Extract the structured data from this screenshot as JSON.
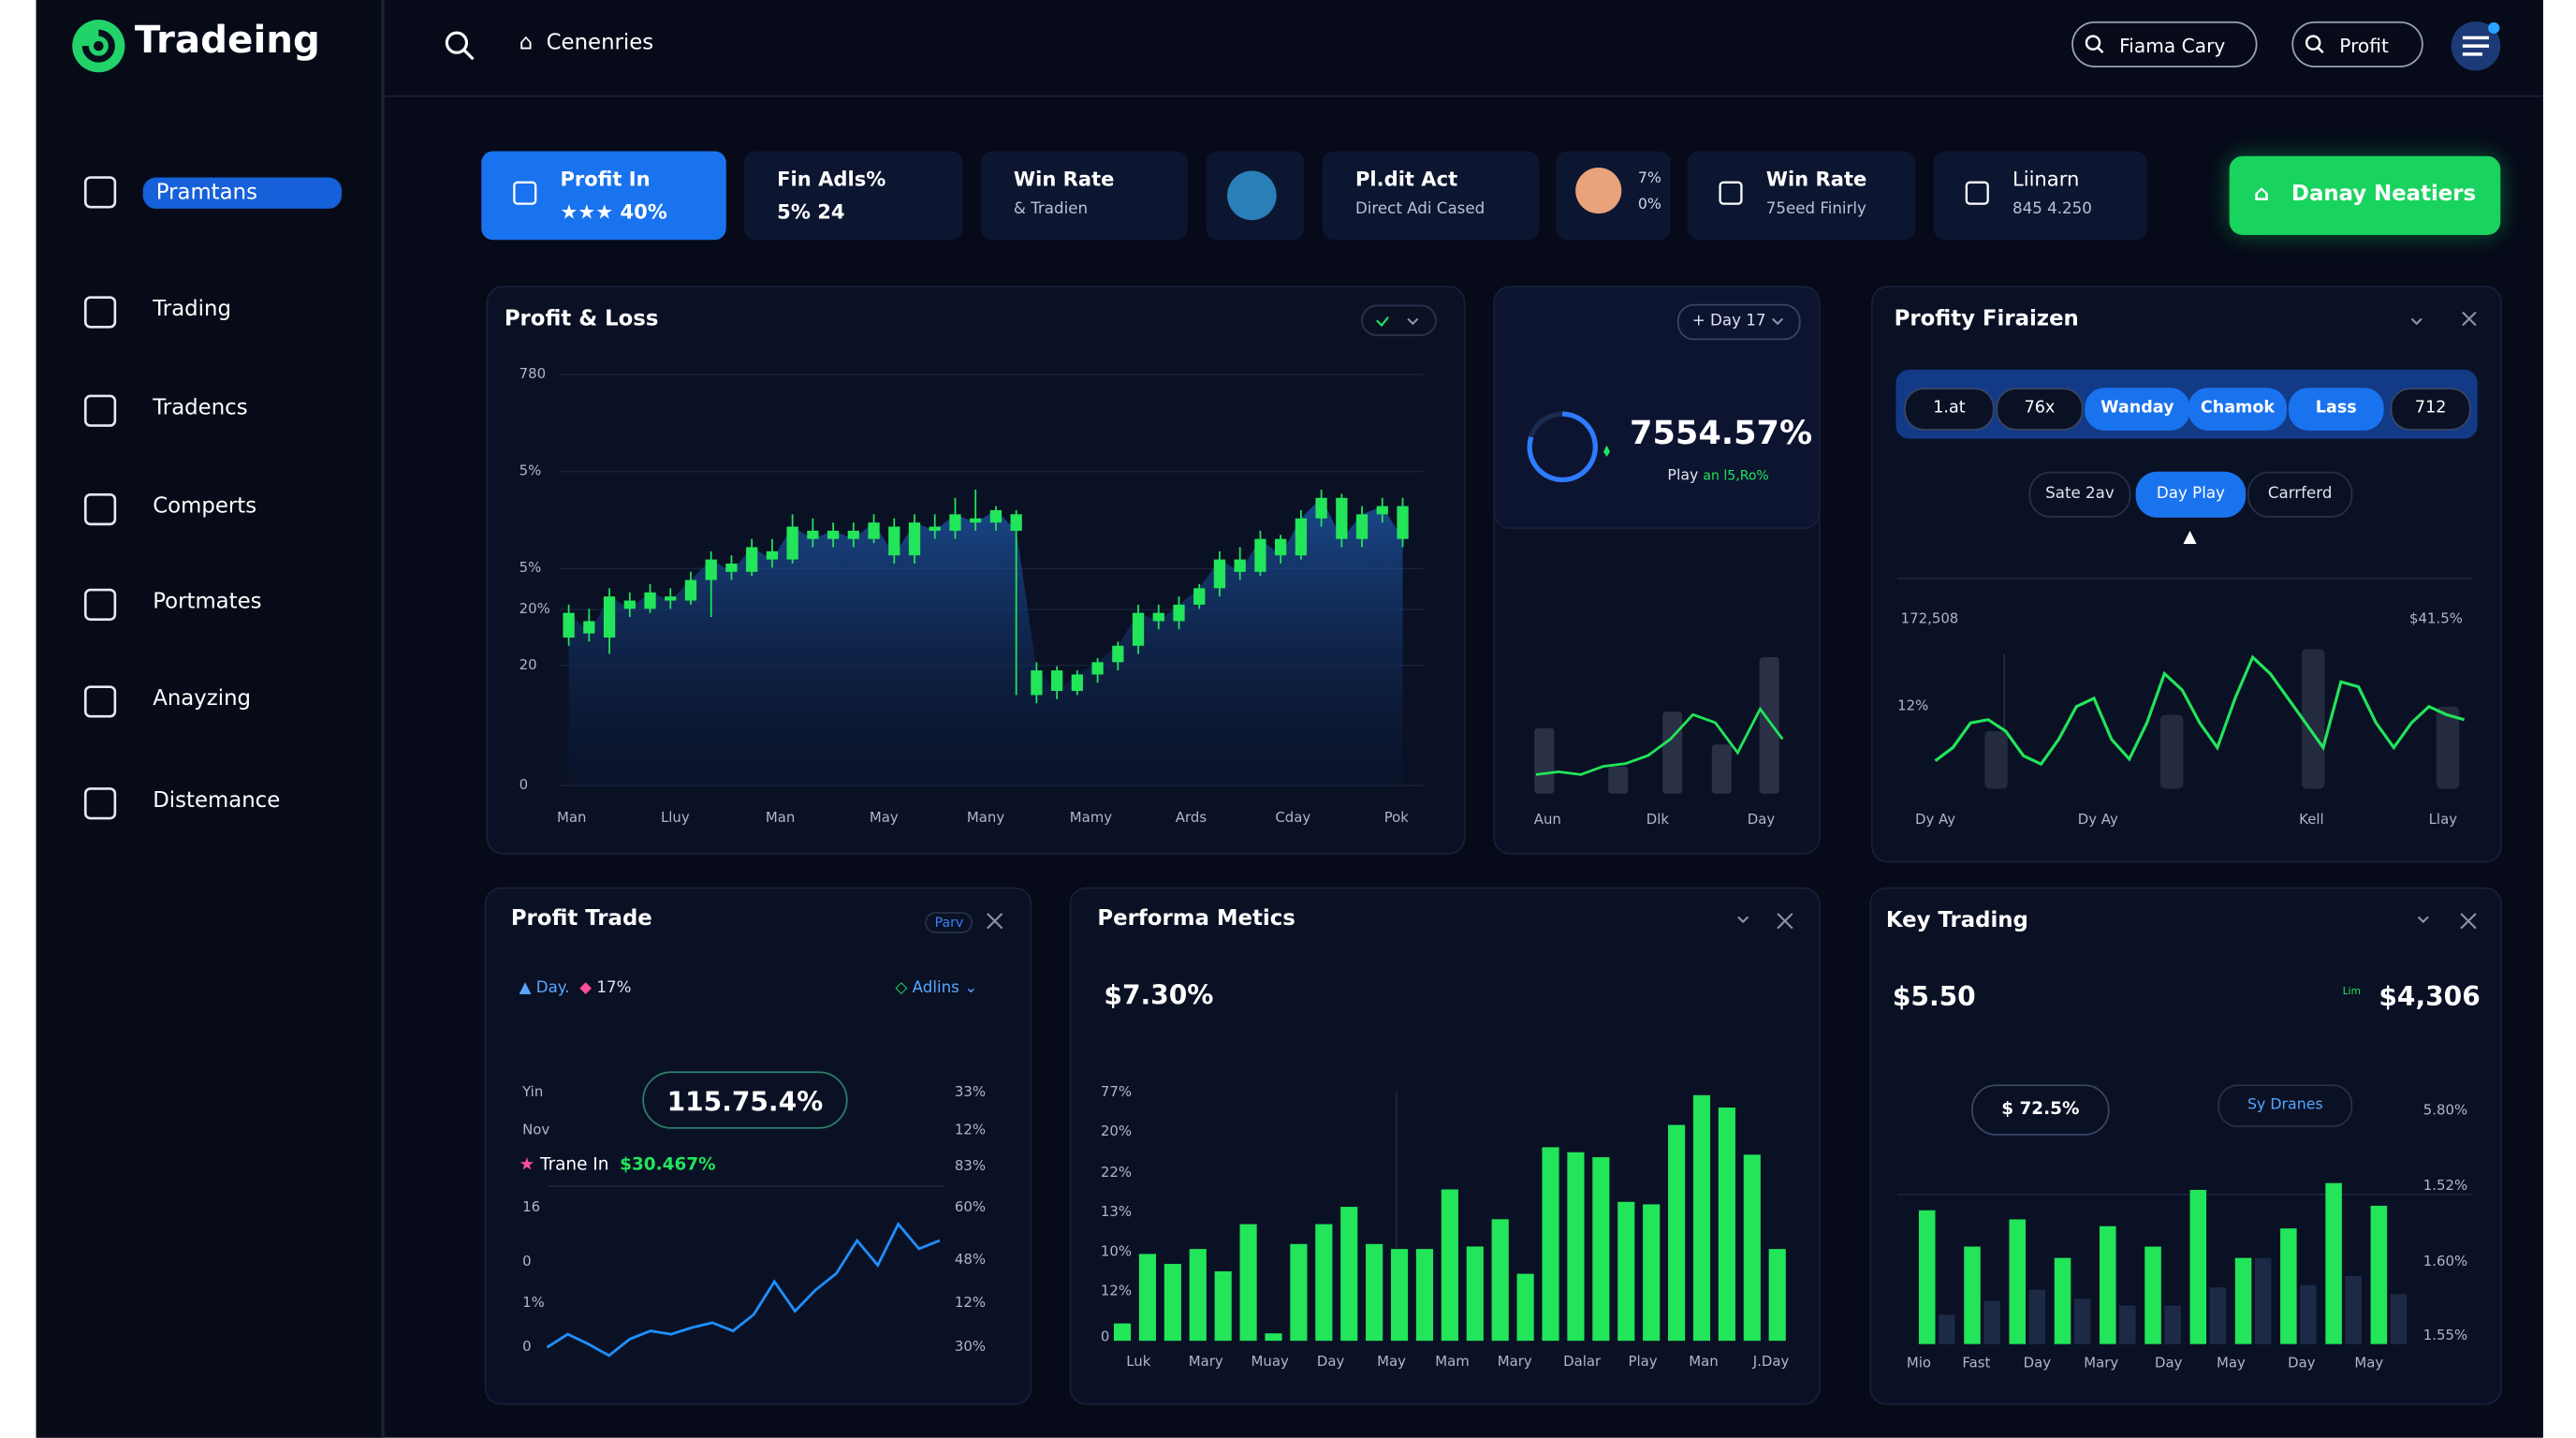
{
  "brand": "Tradeing",
  "nav": {
    "search": "Cenenries",
    "buttons": [
      "Fiama Cary",
      "Profit"
    ]
  },
  "sidebar": {
    "items": [
      "Pramtans",
      "Trading",
      "Tradencs",
      "Comperts",
      "Portmates",
      "Anayzing",
      "Distemance"
    ],
    "active": 0
  },
  "stats": [
    {
      "title": "Profit In",
      "value": "★★★ 40%"
    },
    {
      "title": "Fin Adls%",
      "value": "5% 24"
    },
    {
      "title": "Win Rate",
      "value": "& Tradien"
    },
    {
      "title": "Pl.dit Act",
      "value": "Direct Adi Cased"
    },
    {
      "values": [
        "7%",
        "0%"
      ]
    },
    {
      "title": "Win Rate",
      "value": "75eed Finirly"
    },
    {
      "title": "Liinarn",
      "value": "845 4.250"
    }
  ],
  "cta": "Danay Neatiers",
  "profit_loss": {
    "title": "Profit & Loss",
    "y_labels": [
      "780",
      "5%",
      "5%",
      "20%",
      "20",
      "0"
    ],
    "x_labels": [
      "Man",
      "Lluy",
      "Man",
      "May",
      "Many",
      "Mamy",
      "Ards",
      "Cday",
      "Pok"
    ],
    "ylim": [
      0,
      100
    ],
    "candles": [
      [
        36,
        42,
        44,
        34
      ],
      [
        40,
        37,
        43,
        35
      ],
      [
        36,
        46,
        48,
        32
      ],
      [
        45,
        43,
        47,
        41
      ],
      [
        43,
        47,
        49,
        42
      ],
      [
        46,
        45,
        48,
        43
      ],
      [
        45,
        50,
        52,
        44
      ],
      [
        50,
        55,
        57,
        41
      ],
      [
        54,
        52,
        56,
        50
      ],
      [
        52,
        58,
        60,
        51
      ],
      [
        57,
        55,
        60,
        53
      ],
      [
        55,
        63,
        66,
        54
      ],
      [
        62,
        60,
        65,
        58
      ],
      [
        60,
        62,
        64,
        58
      ],
      [
        62,
        60,
        64,
        58
      ],
      [
        60,
        64,
        66,
        59
      ],
      [
        63,
        56,
        65,
        54
      ],
      [
        56,
        64,
        66,
        54
      ],
      [
        63,
        62,
        66,
        60
      ],
      [
        62,
        66,
        70,
        60
      ],
      [
        65,
        64,
        72,
        62
      ],
      [
        64,
        67,
        68,
        62
      ],
      [
        66,
        62,
        67,
        22
      ],
      [
        22,
        28,
        30,
        20
      ],
      [
        28,
        23,
        29,
        21
      ],
      [
        23,
        27,
        28,
        22
      ],
      [
        27,
        30,
        31,
        25
      ],
      [
        30,
        34,
        35,
        28
      ],
      [
        34,
        42,
        44,
        32
      ],
      [
        42,
        40,
        44,
        38
      ],
      [
        40,
        44,
        46,
        38
      ],
      [
        44,
        48,
        49,
        43
      ],
      [
        48,
        55,
        57,
        46
      ],
      [
        55,
        52,
        58,
        50
      ],
      [
        52,
        60,
        62,
        51
      ],
      [
        60,
        56,
        61,
        54
      ],
      [
        56,
        65,
        67,
        55
      ],
      [
        65,
        70,
        72,
        63
      ],
      [
        70,
        60,
        71,
        58
      ],
      [
        60,
        66,
        68,
        58
      ],
      [
        66,
        68,
        70,
        64
      ],
      [
        68,
        60,
        70,
        58
      ]
    ]
  },
  "gauge": {
    "period": "Day 17",
    "value": "7554.57%",
    "caption": "Play",
    "delta": "an l5,Ro%",
    "x_labels": [
      "Aun",
      "Dlk",
      "Day"
    ],
    "ylim": [
      0,
      100
    ],
    "bars": [
      48,
      20,
      60,
      36,
      100
    ],
    "line": [
      14,
      16,
      14,
      20,
      22,
      28,
      40,
      58,
      52,
      30,
      62,
      40
    ]
  },
  "profity": {
    "title": "Profity Firaizen",
    "tabs": [
      "1.at",
      "76x",
      "Wanday",
      "Chamok",
      "Lass",
      "712"
    ],
    "active_tabs": [
      2,
      3,
      4
    ],
    "subtabs": [
      "Sate 2av",
      "Day Play",
      "Carrferd"
    ],
    "active_subtab": 1,
    "left_label": "172,508",
    "right_label": "$41.5%",
    "mid_label": "12%",
    "x_labels": [
      "Dy Ay",
      "Dy Ay",
      "Kell",
      "Llay"
    ],
    "ylim": [
      0,
      100
    ],
    "line": [
      17,
      25,
      40,
      42,
      35,
      20,
      15,
      30,
      50,
      55,
      30,
      18,
      40,
      70,
      60,
      40,
      25,
      55,
      80,
      70,
      55,
      40,
      25,
      65,
      62,
      40,
      25,
      40,
      50,
      45,
      42
    ],
    "bars": [
      35,
      45,
      85,
      50
    ]
  },
  "profit_trade": {
    "title": "Profit Trade",
    "tag": "Parv",
    "legend": [
      "Day.",
      "17%"
    ],
    "filter": "Adlins",
    "value": "115.75.4%",
    "trade_label": "Trane In",
    "trade_value": "$30.467%",
    "left_labels": [
      "Yin",
      "Nov",
      "16",
      "0",
      "1%",
      "0"
    ],
    "right_labels": [
      "33%",
      "12%",
      "83%",
      "60%",
      "48%",
      "12%",
      "30%"
    ],
    "ylim": [
      0,
      80
    ],
    "line": [
      5,
      13,
      7,
      0,
      10,
      15,
      13,
      17,
      20,
      15,
      25,
      45,
      27,
      40,
      50,
      70,
      55,
      80,
      65,
      70
    ]
  },
  "performa": {
    "title": "Performa Metics",
    "value": "$7.30%",
    "y_labels": [
      "77%",
      "20%",
      "22%",
      "13%",
      "10%",
      "12%",
      "0"
    ],
    "x_labels": [
      "Luk",
      "Mary",
      "Muay",
      "Day",
      "May",
      "Mam",
      "Mary",
      "Dalar",
      "Play",
      "Man",
      "J.Day"
    ],
    "ylim": [
      0,
      100
    ],
    "values": [
      7,
      35,
      31,
      37,
      28,
      47,
      3,
      39,
      47,
      54,
      39,
      37,
      37,
      61,
      38,
      49,
      27,
      78,
      76,
      74,
      56,
      55,
      87,
      99,
      94,
      75,
      37
    ]
  },
  "key_trading": {
    "title": "Key Trading",
    "value": "$5.50",
    "small": "Lim",
    "value2": "$4,306",
    "pill": "$ 72.5%",
    "pill2": "Sy Dranes",
    "right_labels": [
      "5.80%",
      "1.52%",
      "1.60%",
      "1.55%"
    ],
    "x_labels": [
      "Mio",
      "Fast",
      "Day",
      "Mary",
      "Day",
      "May",
      "Day",
      "May"
    ],
    "ylim": [
      0,
      100
    ],
    "series": [
      {
        "color": "#22e55a",
        "values": [
          59,
          43,
          55,
          38,
          52,
          43,
          68,
          38,
          51,
          71,
          61
        ]
      },
      {
        "color": "#1c2a45",
        "values": [
          13,
          19,
          24,
          20,
          17,
          17,
          25,
          38,
          26,
          30,
          22
        ]
      }
    ]
  }
}
